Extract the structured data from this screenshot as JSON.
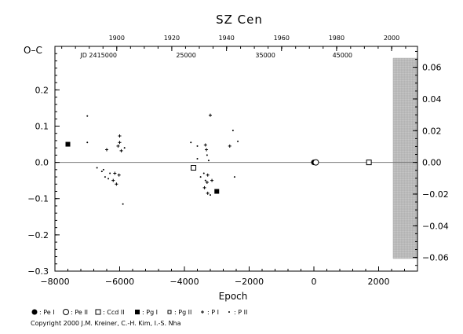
{
  "chart_data": {
    "type": "scatter",
    "title": "SZ Cen",
    "xlabel": "Epoch",
    "ylabel": "O–C",
    "xlim": [
      -8000,
      3200
    ],
    "ylim": [
      -0.3,
      0.32
    ],
    "x_ticks": [
      -8000,
      -6000,
      -4000,
      -2000,
      0,
      2000
    ],
    "x_tick_labels": [
      "−8000",
      "−6000",
      "−4000",
      "−2000",
      "0",
      "2000"
    ],
    "y_ticks": [
      -0.3,
      -0.2,
      -0.1,
      0.0,
      0.1,
      0.2
    ],
    "y_tick_labels": [
      "−0.3",
      "−0.2",
      "−0.1",
      "0.0",
      "0.1",
      "0.2"
    ],
    "top_year_ticks": [
      {
        "x": -6090,
        "label": "1900"
      },
      {
        "x": -4390,
        "label": "1920"
      },
      {
        "x": -2700,
        "label": "1940"
      },
      {
        "x": -1000,
        "label": "1960"
      },
      {
        "x": 700,
        "label": "1980"
      },
      {
        "x": 2400,
        "label": "2000"
      }
    ],
    "top_jd_labels": [
      {
        "x": -6650,
        "label": "JD 2415000"
      },
      {
        "x": -3950,
        "label": "25000"
      },
      {
        "x": -1500,
        "label": "35000"
      },
      {
        "x": 880,
        "label": "45000"
      }
    ],
    "right_axis_ticks": [
      -0.06,
      -0.04,
      -0.02,
      0.0,
      0.02,
      0.04,
      0.06
    ],
    "right_axis_labels": [
      "−0.06",
      "−0.04",
      "−0.02",
      "0.00",
      "0.02",
      "0.04",
      "0.06"
    ],
    "future_zone_x": [
      2450,
      3200
    ],
    "series": [
      {
        "name": "Pe I",
        "marker": "filled-circle",
        "points": [
          [
            0,
            0.0
          ]
        ]
      },
      {
        "name": "Pe II",
        "marker": "open-circle",
        "points": [
          [
            60,
            0.0
          ]
        ]
      },
      {
        "name": "Ccd II",
        "marker": "open-square",
        "points": [
          [
            -3720,
            -0.015
          ],
          [
            1700,
            0.0
          ]
        ]
      },
      {
        "name": "Pg I",
        "marker": "filled-square",
        "points": [
          [
            -7600,
            0.05
          ],
          [
            -3000,
            -0.08
          ]
        ]
      },
      {
        "name": "Pg II",
        "marker": "open-square-small",
        "points": []
      },
      {
        "name": "P I",
        "marker": "plus",
        "points": [
          [
            -6000,
            0.073
          ],
          [
            -6000,
            0.055
          ],
          [
            -6050,
            0.045
          ],
          [
            -6400,
            0.035
          ],
          [
            -5950,
            0.032
          ],
          [
            -6150,
            -0.03
          ],
          [
            -6020,
            -0.035
          ],
          [
            -6200,
            -0.05
          ],
          [
            -6100,
            -0.06
          ],
          [
            -3350,
            0.048
          ],
          [
            -3320,
            0.035
          ],
          [
            -3280,
            -0.035
          ],
          [
            -3300,
            -0.055
          ],
          [
            -3380,
            -0.07
          ],
          [
            -3280,
            -0.085
          ],
          [
            -2600,
            0.045
          ],
          [
            -3150,
            -0.05
          ],
          [
            -3200,
            0.13
          ]
        ]
      },
      {
        "name": "P II",
        "marker": "dot",
        "points": [
          [
            -7000,
            0.128
          ],
          [
            -7000,
            0.055
          ],
          [
            -6700,
            -0.015
          ],
          [
            -6550,
            -0.025
          ],
          [
            -6450,
            -0.04
          ],
          [
            -6350,
            -0.045
          ],
          [
            -5900,
            -0.115
          ],
          [
            -5850,
            0.04
          ],
          [
            -6300,
            -0.03
          ],
          [
            -6500,
            -0.02
          ],
          [
            -3800,
            0.055
          ],
          [
            -3600,
            0.045
          ],
          [
            -3300,
            0.02
          ],
          [
            -3250,
            0.005
          ],
          [
            -3400,
            -0.03
          ],
          [
            -3350,
            -0.05
          ],
          [
            -3500,
            -0.04
          ],
          [
            -3200,
            -0.09
          ],
          [
            -2500,
            0.088
          ],
          [
            -2450,
            -0.04
          ],
          [
            -2350,
            0.058
          ],
          [
            -3600,
            0.01
          ]
        ]
      }
    ],
    "legend": [
      {
        "symbol": "●",
        "label": ": Pe I"
      },
      {
        "symbol": "○",
        "label": ": Pe II"
      },
      {
        "symbol": "□",
        "label": ": Ccd II"
      },
      {
        "symbol": "■",
        "label": ": Pg I"
      },
      {
        "symbol": "□",
        "label": ": Pg II"
      },
      {
        "symbol": "+",
        "label": ": P I"
      },
      {
        "symbol": "·",
        "label": ": P II"
      }
    ],
    "legend_position": "bottom",
    "grid": false
  },
  "copyright": "Copyright 2000 J.M. Kreiner, C.-H. Kim, I.-S. Nha"
}
